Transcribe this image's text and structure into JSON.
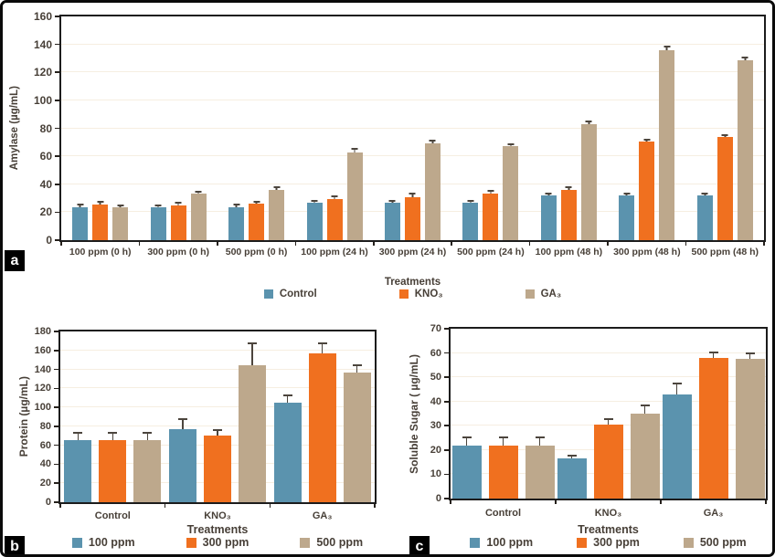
{
  "figure": {
    "panels": [
      {
        "label": "a"
      },
      {
        "label": "b"
      },
      {
        "label": "c"
      }
    ]
  },
  "colors": {
    "series_blue": "#5b93ae",
    "series_orange": "#f0701f",
    "series_tan": "#bda88c",
    "gridline": "#f6eee1",
    "axis": "#26211c",
    "plot_border": "#1c1c1c",
    "text": "#473f37",
    "error_bar": "#4c453d"
  },
  "chart_data": [
    {
      "id": "amylase",
      "type": "bar",
      "title": "",
      "xlabel": "Treatments",
      "ylabel": "Amylase (µg/mL)",
      "ylim": [
        0,
        160
      ],
      "yticks": [
        "0",
        "20",
        "40",
        "60",
        "80",
        "100",
        "120",
        "140",
        "160"
      ],
      "grid": true,
      "legend_position": "bottom",
      "categories": [
        "100 ppm (0 h)",
        "300 ppm (0 h)",
        "500 ppm (0 h)",
        "100 ppm (24 h)",
        "300 ppm (24 h)",
        "500 ppm (24 h)",
        "100 ppm (48 h)",
        "300 ppm (48 h)",
        "500 ppm (48 h)"
      ],
      "series": [
        {
          "name": "Control",
          "color": "#5b93ae",
          "values": [
            23.5,
            23.5,
            23.5,
            26.5,
            26.5,
            26.5,
            32,
            32,
            32
          ],
          "errors": [
            1,
            0.8,
            1,
            0.8,
            0.8,
            0.8,
            0.8,
            0.8,
            0.8
          ]
        },
        {
          "name": "KNO₃",
          "color": "#f0701f",
          "values": [
            25.5,
            25,
            26,
            29.5,
            31,
            33.5,
            36,
            70.5,
            73.5
          ],
          "errors": [
            1,
            1,
            1,
            1,
            1.5,
            1,
            1,
            1,
            1
          ]
        },
        {
          "name": "GA₃",
          "color": "#bda88c",
          "values": [
            23.5,
            33,
            36,
            63,
            69,
            67,
            83,
            136,
            128.5
          ],
          "errors": [
            0.5,
            1,
            1,
            1.5,
            1.5,
            1,
            1,
            1.5,
            1.5
          ]
        }
      ]
    },
    {
      "id": "protein",
      "type": "bar",
      "title": "",
      "xlabel": "Treatments",
      "ylabel": "Protein (µg/mL)",
      "ylim": [
        0,
        180
      ],
      "yticks": [
        "0",
        "20",
        "40",
        "60",
        "80",
        "100",
        "120",
        "140",
        "160",
        "180"
      ],
      "grid": true,
      "legend_position": "bottom",
      "categories": [
        "Control",
        "KNO₃",
        "GA₃"
      ],
      "series": [
        {
          "name": "100 ppm",
          "color": "#5b93ae",
          "values": [
            65,
            77,
            105
          ],
          "errors": [
            7,
            10,
            7
          ]
        },
        {
          "name": "300 ppm",
          "color": "#f0701f",
          "values": [
            65,
            70,
            157
          ],
          "errors": [
            7,
            5,
            10
          ]
        },
        {
          "name": "500 ppm",
          "color": "#bda88c",
          "values": [
            65,
            144,
            137
          ],
          "errors": [
            7,
            23,
            6
          ]
        }
      ]
    },
    {
      "id": "sugar",
      "type": "bar",
      "title": "",
      "xlabel": "Treatments",
      "ylabel": "Soluble Sugar ( µg/mL)",
      "ylim": [
        0,
        70
      ],
      "yticks": [
        "0",
        "10",
        "20",
        "30",
        "40",
        "50",
        "60",
        "70"
      ],
      "grid": true,
      "legend_position": "bottom",
      "categories": [
        "Control",
        "KNO₃",
        "GA₃"
      ],
      "series": [
        {
          "name": "100 ppm",
          "color": "#5b93ae",
          "values": [
            22,
            16.5,
            43
          ],
          "errors": [
            3,
            1,
            4
          ]
        },
        {
          "name": "300 ppm",
          "color": "#f0701f",
          "values": [
            22,
            30.5,
            58
          ],
          "errors": [
            3,
            2,
            2
          ]
        },
        {
          "name": "500 ppm",
          "color": "#bda88c",
          "values": [
            22,
            35,
            57.5
          ],
          "errors": [
            3,
            3,
            2
          ]
        }
      ]
    }
  ]
}
